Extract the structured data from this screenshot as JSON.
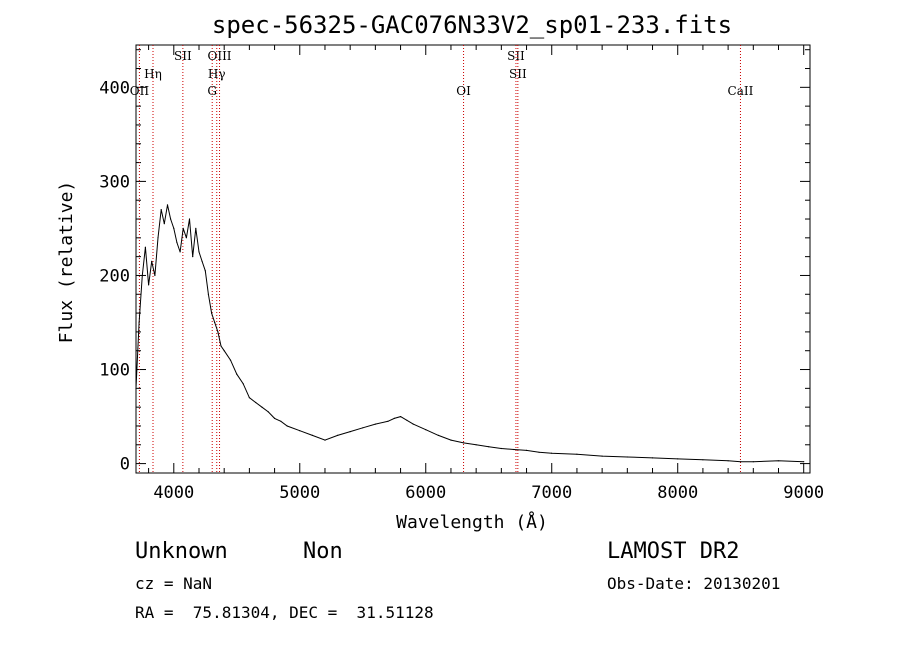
{
  "chart_data": {
    "type": "line",
    "title": "spec-56325-GAC076N33V2_sp01-233.fits",
    "xlabel": "Wavelength (Å)",
    "ylabel": "Flux (relative)",
    "xlim": [
      3700,
      9050
    ],
    "ylim": [
      -10,
      445
    ],
    "xticks": [
      4000,
      5000,
      6000,
      7000,
      8000,
      9000
    ],
    "xtick_labels": [
      "4000",
      "5000",
      "6000",
      "7000",
      "8000",
      "9000"
    ],
    "yticks": [
      0,
      100,
      200,
      300,
      400
    ],
    "ytick_labels": [
      "0",
      "100",
      "200",
      "300",
      "400"
    ],
    "grid": false,
    "line_color": "#000000",
    "marker_line_color": "#cc0000",
    "lines": [
      {
        "label": "OII",
        "x": 3727
      },
      {
        "label": "Hη",
        "x": 3835
      },
      {
        "label": "SII",
        "x": 4072
      },
      {
        "label": "G",
        "x": 4305
      },
      {
        "label": "Hγ",
        "x": 4341
      },
      {
        "label": "OIII",
        "x": 4363
      },
      {
        "label": "OI",
        "x": 6300
      },
      {
        "label": "SII",
        "x": 6716
      },
      {
        "label": "SII",
        "x": 6731
      },
      {
        "label": "CaII",
        "x": 8498
      }
    ],
    "series": [
      {
        "x": [
          3700,
          3725,
          3750,
          3775,
          3800,
          3825,
          3850,
          3875,
          3900,
          3925,
          3950,
          3975,
          4000,
          4025,
          4050,
          4075,
          4100,
          4125,
          4150,
          4175,
          4200,
          4225,
          4250,
          4275,
          4300,
          4325,
          4350,
          4375,
          4400,
          4450,
          4500,
          4550,
          4600,
          4650,
          4700,
          4750,
          4800,
          4850,
          4900,
          5000,
          5100,
          5200,
          5300,
          5400,
          5500,
          5600,
          5700,
          5750,
          5800,
          5850,
          5900,
          6000,
          6100,
          6200,
          6300,
          6400,
          6500,
          6600,
          6700,
          6800,
          6900,
          7000,
          7200,
          7400,
          7600,
          7800,
          8000,
          8200,
          8400,
          8500,
          8600,
          8800,
          9000
        ],
        "values": [
          80,
          150,
          200,
          230,
          190,
          215,
          200,
          240,
          270,
          255,
          275,
          260,
          250,
          235,
          225,
          250,
          240,
          260,
          220,
          250,
          225,
          215,
          205,
          180,
          160,
          150,
          140,
          125,
          120,
          110,
          95,
          85,
          70,
          65,
          60,
          55,
          48,
          45,
          40,
          35,
          30,
          25,
          30,
          34,
          38,
          42,
          45,
          48,
          50,
          46,
          42,
          36,
          30,
          25,
          22,
          20,
          18,
          16,
          15,
          14,
          12,
          11,
          10,
          8,
          7,
          6,
          5,
          4,
          3,
          2,
          2,
          3,
          2
        ]
      }
    ]
  },
  "footer": {
    "object_class": "Unknown",
    "object_subclass": "Non",
    "cz": "cz = NaN",
    "radec": "RA =  75.81304, DEC =  31.51128",
    "survey": "LAMOST DR2",
    "obs_date": "Obs-Date: 20130201"
  }
}
